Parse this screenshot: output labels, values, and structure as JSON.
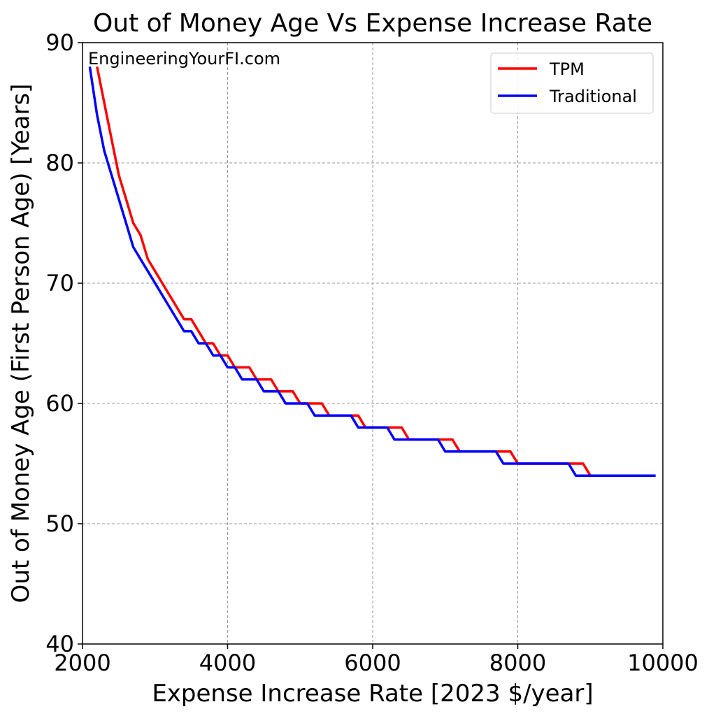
{
  "chart_data": {
    "type": "line",
    "title": "Out of Money Age Vs Expense Increase Rate",
    "xlabel": "Expense Increase Rate [2023 $/year]",
    "ylabel": "Out of Money Age (First Person Age) [Years]",
    "xlim": [
      2000,
      10000
    ],
    "ylim": [
      40,
      90
    ],
    "xticks": [
      2000,
      4000,
      6000,
      8000,
      10000
    ],
    "yticks": [
      40,
      50,
      60,
      70,
      80,
      90
    ],
    "grid": true,
    "legend_position": "top-right",
    "annotation": "EngineeringYourFI.com",
    "series": [
      {
        "name": "TPM",
        "color": "#ff0000",
        "points": [
          [
            2200,
            88
          ],
          [
            2300,
            85
          ],
          [
            2400,
            82
          ],
          [
            2500,
            79
          ],
          [
            2600,
            77
          ],
          [
            2700,
            75
          ],
          [
            2800,
            74
          ],
          [
            2900,
            72
          ],
          [
            3000,
            71
          ],
          [
            3100,
            70
          ],
          [
            3200,
            69
          ],
          [
            3300,
            68
          ],
          [
            3400,
            67
          ],
          [
            3500,
            67
          ],
          [
            3600,
            66
          ],
          [
            3700,
            65
          ],
          [
            3800,
            65
          ],
          [
            3900,
            64
          ],
          [
            4000,
            64
          ],
          [
            4100,
            63
          ],
          [
            4300,
            63
          ],
          [
            4400,
            62
          ],
          [
            4600,
            62
          ],
          [
            4700,
            61
          ],
          [
            4900,
            61
          ],
          [
            5000,
            60
          ],
          [
            5300,
            60
          ],
          [
            5400,
            59
          ],
          [
            5800,
            59
          ],
          [
            5900,
            58
          ],
          [
            6400,
            58
          ],
          [
            6500,
            57
          ],
          [
            7100,
            57
          ],
          [
            7200,
            56
          ],
          [
            7900,
            56
          ],
          [
            8000,
            55
          ],
          [
            8900,
            55
          ],
          [
            9000,
            54
          ],
          [
            9900,
            54
          ]
        ]
      },
      {
        "name": "Traditional",
        "color": "#0000ff",
        "points": [
          [
            2100,
            88
          ],
          [
            2200,
            84
          ],
          [
            2300,
            81
          ],
          [
            2400,
            79
          ],
          [
            2500,
            77
          ],
          [
            2600,
            75
          ],
          [
            2700,
            73
          ],
          [
            2800,
            72
          ],
          [
            2900,
            71
          ],
          [
            3000,
            70
          ],
          [
            3100,
            69
          ],
          [
            3200,
            68
          ],
          [
            3300,
            67
          ],
          [
            3400,
            66
          ],
          [
            3500,
            66
          ],
          [
            3600,
            65
          ],
          [
            3700,
            65
          ],
          [
            3800,
            64
          ],
          [
            3900,
            64
          ],
          [
            4000,
            63
          ],
          [
            4100,
            63
          ],
          [
            4200,
            62
          ],
          [
            4400,
            62
          ],
          [
            4500,
            61
          ],
          [
            4700,
            61
          ],
          [
            4800,
            60
          ],
          [
            5100,
            60
          ],
          [
            5200,
            59
          ],
          [
            5700,
            59
          ],
          [
            5800,
            58
          ],
          [
            6200,
            58
          ],
          [
            6300,
            57
          ],
          [
            6900,
            57
          ],
          [
            7000,
            56
          ],
          [
            7700,
            56
          ],
          [
            7800,
            55
          ],
          [
            8700,
            55
          ],
          [
            8800,
            54
          ],
          [
            9900,
            54
          ]
        ]
      }
    ]
  }
}
